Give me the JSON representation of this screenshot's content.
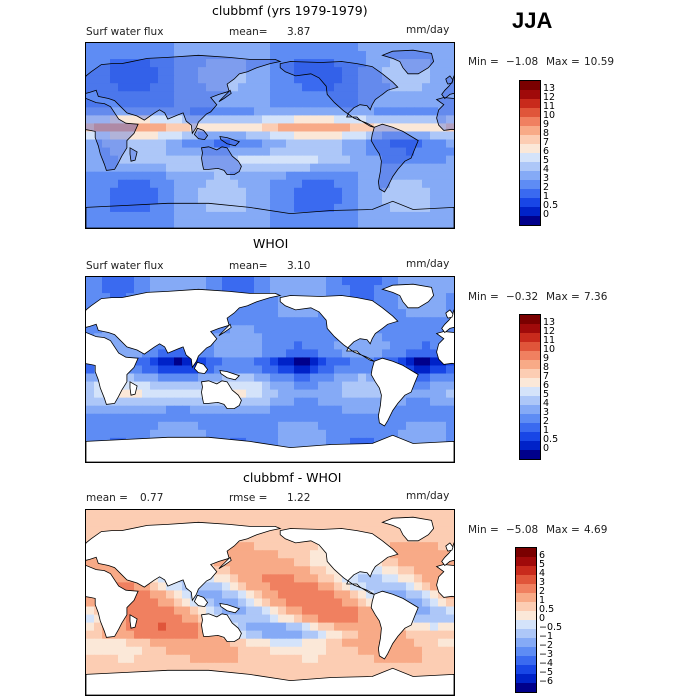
{
  "season": "JJA",
  "panels": [
    {
      "title": "clubbmf (yrs 1979-1979)",
      "variable": "Surf water flux",
      "stat1_label": "mean=",
      "stat1_value": "3.87",
      "units": "mm/day",
      "min_label": "Min =",
      "min_value": "−1.08",
      "max_label": "Max =",
      "max_value": "10.59",
      "ocean_only": false
    },
    {
      "title": "WHOI",
      "variable": "Surf water flux",
      "stat1_label": "mean=",
      "stat1_value": "3.10",
      "units": "mm/day",
      "min_label": "Min =",
      "min_value": "−0.32",
      "max_label": "Max =",
      "max_value": "7.36",
      "ocean_only": true
    },
    {
      "title": "clubbmf - WHOI",
      "variable": "",
      "stat0_label": "mean =",
      "stat0_value": "0.77",
      "stat1_label": "rmse =",
      "stat1_value": "1.22",
      "units": "mm/day",
      "min_label": "Min =",
      "min_value": "−5.08",
      "max_label": "Max =",
      "max_value": "4.69",
      "ocean_only": true
    }
  ],
  "chart_data": [
    {
      "type": "heatmap",
      "title": "clubbmf (yrs 1979-1979)",
      "variable": "Surf water flux",
      "units": "mm/day",
      "mean": 3.87,
      "min": -1.08,
      "max": 10.59,
      "levels": [
        "0",
        "0.5",
        "1",
        "2",
        "3",
        "4",
        "5",
        "6",
        "7",
        "8",
        "9",
        "10",
        "11",
        "12",
        "13"
      ],
      "colors": [
        "#00008b",
        "#0022c8",
        "#1846e6",
        "#3a6af0",
        "#5e8cf4",
        "#85aaf6",
        "#adc7f8",
        "#d4e3fa",
        "#fbe8d8",
        "#fccdb3",
        "#f8aa87",
        "#f08060",
        "#e0553a",
        "#c82a1c",
        "#a00a0a",
        "#7a0000"
      ]
    },
    {
      "type": "heatmap",
      "title": "WHOI",
      "variable": "Surf water flux",
      "units": "mm/day",
      "mean": 3.1,
      "min": -0.32,
      "max": 7.36,
      "levels": [
        "0",
        "0.5",
        "1",
        "2",
        "3",
        "4",
        "5",
        "6",
        "7",
        "8",
        "9",
        "10",
        "11",
        "12",
        "13"
      ],
      "colors": [
        "#00008b",
        "#0022c8",
        "#1846e6",
        "#3a6af0",
        "#5e8cf4",
        "#85aaf6",
        "#adc7f8",
        "#d4e3fa",
        "#fbe8d8",
        "#fccdb3",
        "#f8aa87",
        "#f08060",
        "#e0553a",
        "#c82a1c",
        "#a00a0a",
        "#7a0000"
      ]
    },
    {
      "type": "heatmap",
      "title": "clubbmf - WHOI",
      "units": "mm/day",
      "mean": 0.77,
      "rmse": 1.22,
      "min": -5.08,
      "max": 4.69,
      "levels": [
        "−6",
        "−5",
        "−4",
        "−3",
        "−2",
        "−1",
        "−0.5",
        "0",
        "0.5",
        "1",
        "2",
        "3",
        "4",
        "5",
        "6"
      ],
      "colors": [
        "#00008b",
        "#0022c8",
        "#1846e6",
        "#3a6af0",
        "#5e8cf4",
        "#85aaf6",
        "#adc7f8",
        "#d4e3fa",
        "#fbe8d8",
        "#fccdb3",
        "#f8aa87",
        "#f08060",
        "#e0553a",
        "#c82a1c",
        "#a00a0a",
        "#7a0000"
      ]
    }
  ]
}
